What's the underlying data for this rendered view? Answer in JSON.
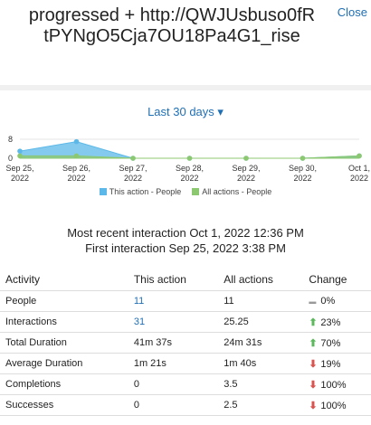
{
  "header": {
    "title": "progressed + http://QWJUsbuso0fRtPYNgO5Cja7OU18Pa4G1_rise",
    "close": "Close"
  },
  "filter": {
    "label": "Last 30 days"
  },
  "chart_data": {
    "type": "area",
    "categories": [
      "Sep 25, 2022",
      "Sep 26, 2022",
      "Sep 27, 2022",
      "Sep 28, 2022",
      "Sep 29, 2022",
      "Sep 30, 2022",
      "Oct 1, 2022"
    ],
    "series": [
      {
        "name": "This action - People",
        "color": "#5bb8e8",
        "values": [
          3,
          7,
          0,
          0,
          0,
          0,
          1
        ]
      },
      {
        "name": "All actions - People",
        "color": "#8cc870",
        "values": [
          1,
          1,
          0,
          0,
          0,
          0,
          1
        ]
      }
    ],
    "ylim": [
      0,
      8
    ],
    "yticks": [
      0,
      8
    ]
  },
  "interactions": {
    "most_recent": "Most recent interaction Oct 1, 2022 12:36 PM",
    "first": "First interaction Sep 25, 2022 3:38 PM"
  },
  "table": {
    "header": [
      "Activity",
      "This action",
      "All actions",
      "Change"
    ],
    "rows": [
      [
        "People",
        "11",
        "11",
        {
          "text": "0%",
          "trend": "flat"
        }
      ],
      [
        "Interactions",
        "31",
        "25.25",
        {
          "text": "23%",
          "trend": "up"
        }
      ],
      [
        "Total Duration",
        "41m 37s",
        "24m 31s",
        {
          "text": "70%",
          "trend": "up"
        }
      ],
      [
        "Average Duration",
        "1m 21s",
        "1m 40s",
        {
          "text": "19%",
          "trend": "down"
        }
      ],
      [
        "Completions",
        "0",
        "3.5",
        {
          "text": "100%",
          "trend": "down"
        }
      ],
      [
        "Successes",
        "0",
        "2.5",
        {
          "text": "100%",
          "trend": "down"
        }
      ]
    ]
  }
}
